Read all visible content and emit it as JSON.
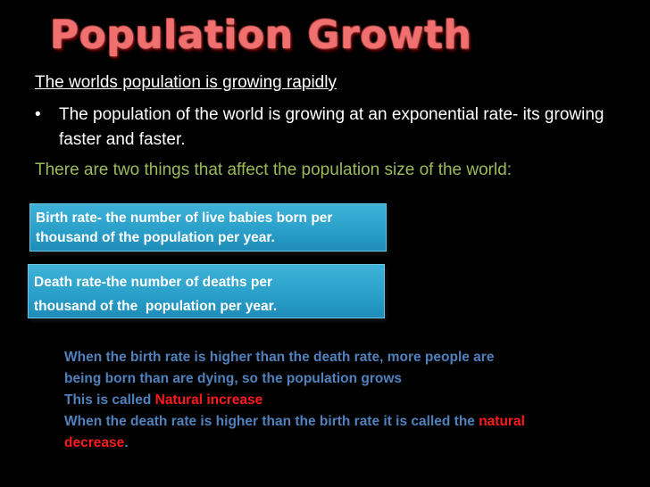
{
  "slide": {
    "title": "Population Growth",
    "subheading": "The worlds population is growing rapidly",
    "bullet_symbol": "•",
    "bullet_text": "The population of the world is growing at an exponential rate- its growing faster and faster.",
    "intro": "There are two things that affect the population size of the world:"
  },
  "boxes": {
    "birth_rate": "Birth rate- the number of live babies born per thousand of the population per year.",
    "death_rate_line1": "Death rate-the number of deaths per",
    "death_rate_line2": "thousand of the  population per year."
  },
  "explanation": {
    "line1": "When the birth rate is higher than the death rate, more people are being born than are dying, so the population grows",
    "line2_prefix": "This is called ",
    "line2_highlight": "Natural increase",
    "line3_prefix": "When the death rate is higher than the birth rate it is called the ",
    "line3_highlight": "natural decrease",
    "line3_suffix": "."
  },
  "colors": {
    "background": "#000000",
    "title": "#f07070",
    "intro_green": "#9bbb59",
    "box_blue": "#2aa0ca",
    "explanation_blue": "#4f81bd",
    "highlight_red": "#ff1a1a"
  }
}
